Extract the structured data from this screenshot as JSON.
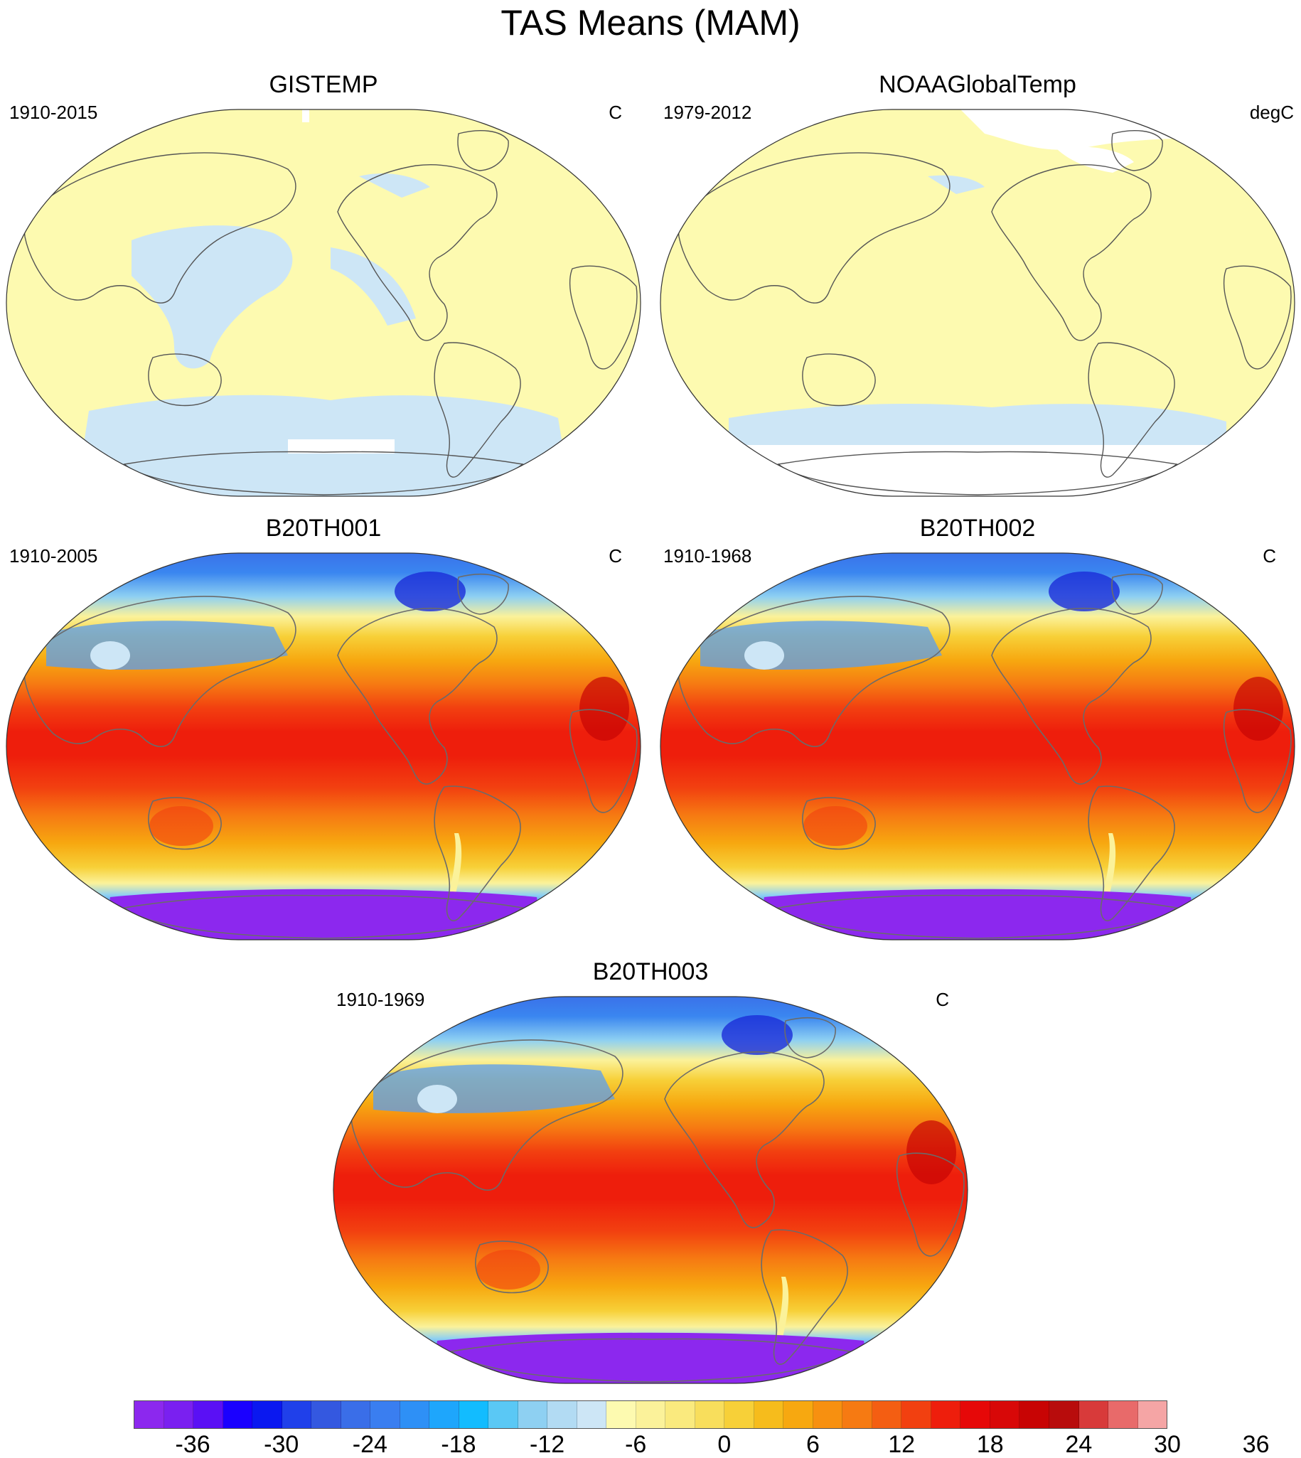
{
  "title": "TAS Means (MAM)",
  "panels": [
    {
      "title": "GISTEMP",
      "period": "1910-2015",
      "units": "C",
      "style": "obs",
      "missing": "partial"
    },
    {
      "title": "NOAAGlobalTemp",
      "period": "1979-2012",
      "units": "degC",
      "style": "obs",
      "missing": "polar"
    },
    {
      "title": "B20TH001",
      "period": "1910-2005",
      "units": "C",
      "style": "model"
    },
    {
      "title": "B20TH002",
      "period": "1910-1968",
      "units": "C",
      "style": "model"
    },
    {
      "title": "B20TH003",
      "period": "1910-1969",
      "units": "C",
      "style": "model"
    }
  ],
  "colorbar": {
    "colors": [
      "#8c28ee",
      "#7a20f0",
      "#5a10f5",
      "#1a00ff",
      "#0a18f0",
      "#2040ea",
      "#3458e0",
      "#3a6ee8",
      "#3a7ef0",
      "#2e90f6",
      "#1ea6fc",
      "#12bcff",
      "#5ac8f5",
      "#8ed0f2",
      "#b2dbf3",
      "#cde6f6",
      "#fdfab0",
      "#fbf29a",
      "#faea7e",
      "#f8de5c",
      "#f7d038",
      "#f6bc1c",
      "#f7a810",
      "#f79010",
      "#f67a12",
      "#f45e12",
      "#f24010",
      "#ee1e0c",
      "#e60808",
      "#d80808",
      "#c80404",
      "#b80c0c",
      "#d83a3a",
      "#e86a6a",
      "#f5a5a5"
    ],
    "tick_labels": [
      "-36",
      "-30",
      "-24",
      "-18",
      "-12",
      "-6",
      "0",
      "6",
      "12",
      "18",
      "24",
      "30",
      "36"
    ]
  }
}
